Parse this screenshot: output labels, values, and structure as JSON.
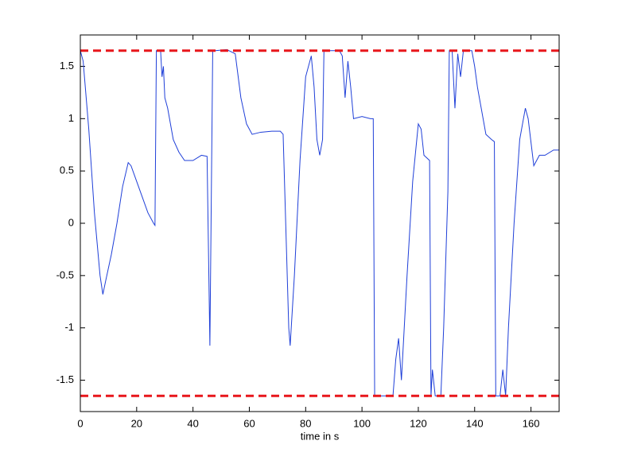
{
  "chart_data": {
    "type": "line",
    "xlabel": "time in s",
    "xlim": [
      0,
      170
    ],
    "ylim": [
      -1.8,
      1.8
    ],
    "xticks": [
      0,
      20,
      40,
      60,
      80,
      100,
      120,
      140,
      160
    ],
    "yticks": [
      -1.5,
      -1,
      -0.5,
      0,
      0.5,
      1,
      1.5
    ],
    "grid": false,
    "series": [
      {
        "color": "#1f3fd8",
        "linestyle": "solid",
        "x": [
          0,
          1,
          3,
          5,
          7,
          8,
          9,
          11,
          13,
          15,
          17,
          18,
          20,
          22,
          24,
          26,
          26.5,
          27,
          28.5,
          29,
          29.5,
          30,
          31,
          33,
          35,
          37,
          40,
          43,
          45,
          46,
          47,
          48,
          52,
          55,
          57,
          59,
          61,
          64,
          68,
          71,
          72,
          74,
          74.5,
          76,
          78,
          80,
          82,
          83,
          84,
          85,
          86,
          86.5,
          92,
          93,
          94,
          95,
          96,
          97,
          100,
          103,
          104,
          104.5,
          111,
          112,
          113,
          114,
          116,
          118,
          120,
          121,
          122,
          124,
          124.5,
          125,
          126,
          128,
          129,
          130.5,
          131,
          132,
          133,
          134,
          135,
          136,
          139,
          140,
          141,
          142,
          144,
          146,
          147,
          147.5,
          149,
          150,
          151,
          152,
          154,
          156,
          158,
          159,
          161,
          163,
          165,
          168,
          170
        ],
        "values": [
          1.65,
          1.55,
          0.9,
          0.1,
          -0.5,
          -0.68,
          -0.55,
          -0.3,
          0,
          0.35,
          0.58,
          0.55,
          0.4,
          0.25,
          0.1,
          0,
          -0.02,
          1.65,
          1.65,
          1.4,
          1.5,
          1.2,
          1.1,
          0.8,
          0.68,
          0.6,
          0.6,
          0.65,
          0.64,
          -1.17,
          1.65,
          1.65,
          1.66,
          1.62,
          1.2,
          0.95,
          0.85,
          0.87,
          0.88,
          0.88,
          0.85,
          -1,
          -1.17,
          -0.5,
          0.6,
          1.4,
          1.6,
          1.3,
          0.8,
          0.65,
          0.8,
          1.65,
          1.65,
          1.6,
          1.2,
          1.55,
          1.3,
          1,
          1.02,
          1,
          1,
          -1.65,
          -1.65,
          -1.3,
          -1.1,
          -1.5,
          -0.5,
          0.4,
          0.95,
          0.9,
          0.65,
          0.6,
          -1.65,
          -1.4,
          -1.65,
          -1.65,
          -1,
          0.3,
          1.65,
          1.65,
          1.1,
          1.62,
          1.4,
          1.65,
          1.65,
          1.5,
          1.3,
          1.15,
          0.85,
          0.8,
          0.78,
          -1.65,
          -1.65,
          -1.4,
          -1.65,
          -1,
          0,
          0.8,
          1.1,
          1,
          0.55,
          0.65,
          0.65,
          0.7,
          0.7
        ]
      },
      {
        "color": "#e8161b",
        "linestyle": "dashed",
        "x": [
          0,
          170
        ],
        "values": [
          1.65,
          1.65
        ]
      },
      {
        "color": "#e8161b",
        "linestyle": "dashed",
        "x": [
          0,
          170
        ],
        "values": [
          -1.65,
          -1.65
        ]
      }
    ]
  }
}
